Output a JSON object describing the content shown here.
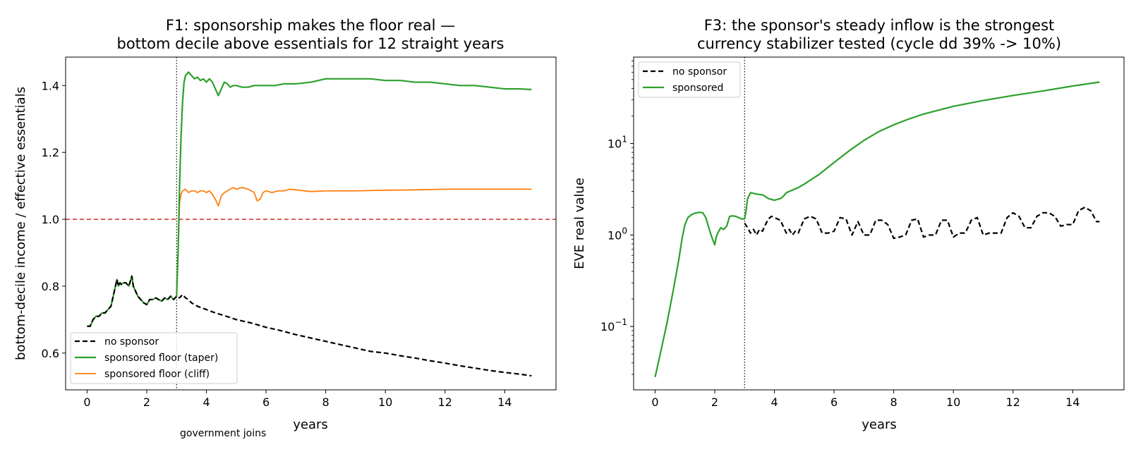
{
  "chart_data": [
    {
      "type": "line",
      "title_lines": [
        "F1: sponsorship makes the floor real —",
        "bottom decile above essentials for 12 straight years"
      ],
      "xlabel": "years",
      "ylabel": "bottom-decile income / effective essentials",
      "xlim": [
        -0.72,
        15.72
      ],
      "ylim": [
        0.49,
        1.485
      ],
      "xticks": [
        0,
        2,
        4,
        6,
        8,
        10,
        12,
        14
      ],
      "xtick_labels": [
        "0",
        "2",
        "4",
        "6",
        "8",
        "10",
        "12",
        "14"
      ],
      "yticks": [
        0.6,
        0.8,
        1.0,
        1.2,
        1.4
      ],
      "ytick_labels": [
        "0.6",
        "0.8",
        "1.0",
        "1.2",
        "1.4"
      ],
      "legend_position": "lower-left",
      "grid": false,
      "reference_lines": [
        {
          "orientation": "horizontal",
          "value": 1.0,
          "style": "dashed",
          "color": "#d62728"
        },
        {
          "orientation": "vertical",
          "value": 3.0,
          "style": "dotted",
          "color": "#000000"
        }
      ],
      "annotations": [
        {
          "text": "government joins",
          "x": 3.0
        }
      ],
      "series": [
        {
          "name": "no sponsor",
          "color": "#000000",
          "style": "dashed",
          "x": [
            0,
            0.1,
            0.2,
            0.3,
            0.4,
            0.5,
            0.6,
            0.7,
            0.8,
            0.9,
            1.0,
            1.05,
            1.1,
            1.15,
            1.2,
            1.3,
            1.4,
            1.5,
            1.55,
            1.6,
            1.7,
            1.8,
            1.9,
            2.0,
            2.1,
            2.2,
            2.3,
            2.4,
            2.5,
            2.6,
            2.7,
            2.8,
            2.9,
            3.0,
            3.1,
            3.2,
            3.3,
            3.4,
            3.5,
            3.7,
            4.0,
            4.3,
            4.6,
            5.0,
            5.5,
            6.0,
            6.5,
            7.0,
            7.5,
            8.0,
            8.5,
            9.0,
            9.5,
            10.0,
            10.5,
            11.0,
            11.5,
            12.0,
            12.5,
            13.0,
            13.5,
            14.0,
            14.5,
            14.9
          ],
          "y": [
            0.68,
            0.68,
            0.7,
            0.71,
            0.71,
            0.72,
            0.72,
            0.73,
            0.74,
            0.78,
            0.82,
            0.8,
            0.81,
            0.805,
            0.81,
            0.81,
            0.8,
            0.83,
            0.8,
            0.79,
            0.77,
            0.76,
            0.75,
            0.745,
            0.76,
            0.76,
            0.765,
            0.76,
            0.755,
            0.765,
            0.76,
            0.77,
            0.76,
            0.77,
            0.765,
            0.775,
            0.765,
            0.76,
            0.75,
            0.74,
            0.73,
            0.72,
            0.712,
            0.7,
            0.69,
            0.677,
            0.667,
            0.655,
            0.645,
            0.635,
            0.625,
            0.615,
            0.605,
            0.6,
            0.592,
            0.585,
            0.577,
            0.57,
            0.562,
            0.555,
            0.548,
            0.542,
            0.537,
            0.532
          ]
        },
        {
          "name": "sponsored floor (taper)",
          "color": "#2ca02c",
          "style": "solid",
          "x": [
            0,
            0.1,
            0.2,
            0.3,
            0.4,
            0.5,
            0.6,
            0.7,
            0.8,
            0.9,
            1.0,
            1.05,
            1.1,
            1.15,
            1.2,
            1.3,
            1.4,
            1.5,
            1.55,
            1.6,
            1.7,
            1.8,
            1.9,
            2.0,
            2.1,
            2.2,
            2.3,
            2.4,
            2.5,
            2.6,
            2.7,
            2.8,
            2.9,
            3.0,
            3.05,
            3.1,
            3.15,
            3.2,
            3.25,
            3.3,
            3.4,
            3.5,
            3.6,
            3.7,
            3.8,
            3.9,
            4.0,
            4.1,
            4.2,
            4.3,
            4.4,
            4.5,
            4.6,
            4.7,
            4.8,
            4.9,
            5.0,
            5.2,
            5.4,
            5.6,
            5.8,
            6.0,
            6.3,
            6.6,
            7.0,
            7.5,
            8.0,
            8.5,
            9.0,
            9.5,
            10.0,
            10.5,
            11.0,
            11.5,
            12.0,
            12.5,
            13.0,
            13.5,
            14.0,
            14.5,
            14.9
          ],
          "y": [
            0.68,
            0.68,
            0.7,
            0.71,
            0.71,
            0.72,
            0.72,
            0.73,
            0.74,
            0.78,
            0.82,
            0.8,
            0.81,
            0.805,
            0.81,
            0.81,
            0.8,
            0.83,
            0.8,
            0.79,
            0.77,
            0.76,
            0.75,
            0.745,
            0.76,
            0.76,
            0.765,
            0.76,
            0.755,
            0.765,
            0.76,
            0.77,
            0.76,
            0.77,
            0.9,
            1.1,
            1.25,
            1.35,
            1.41,
            1.43,
            1.44,
            1.43,
            1.42,
            1.425,
            1.415,
            1.42,
            1.41,
            1.42,
            1.41,
            1.39,
            1.37,
            1.39,
            1.41,
            1.405,
            1.395,
            1.4,
            1.4,
            1.395,
            1.395,
            1.4,
            1.4,
            1.4,
            1.4,
            1.405,
            1.405,
            1.41,
            1.42,
            1.42,
            1.42,
            1.42,
            1.415,
            1.415,
            1.41,
            1.41,
            1.405,
            1.4,
            1.4,
            1.395,
            1.39,
            1.39,
            1.388
          ]
        },
        {
          "name": "sponsored floor (cliff)",
          "color": "#ff7f0e",
          "style": "solid",
          "x": [
            0,
            0.1,
            0.2,
            0.3,
            0.4,
            0.5,
            0.6,
            0.7,
            0.8,
            0.9,
            1.0,
            1.05,
            1.1,
            1.15,
            1.2,
            1.3,
            1.4,
            1.5,
            1.55,
            1.6,
            1.7,
            1.8,
            1.9,
            2.0,
            2.1,
            2.2,
            2.3,
            2.4,
            2.5,
            2.6,
            2.7,
            2.8,
            2.9,
            3.0,
            3.05,
            3.1,
            3.15,
            3.2,
            3.3,
            3.4,
            3.5,
            3.6,
            3.7,
            3.8,
            3.9,
            4.0,
            4.1,
            4.2,
            4.3,
            4.4,
            4.5,
            4.6,
            4.7,
            4.8,
            4.9,
            5.0,
            5.2,
            5.4,
            5.6,
            5.7,
            5.8,
            5.9,
            6.0,
            6.2,
            6.4,
            6.6,
            6.8,
            7.0,
            7.5,
            8.0,
            9.0,
            10.0,
            11.0,
            12.0,
            13.0,
            14.0,
            14.9
          ],
          "y": [
            0.68,
            0.68,
            0.7,
            0.71,
            0.71,
            0.72,
            0.72,
            0.73,
            0.74,
            0.78,
            0.82,
            0.8,
            0.81,
            0.805,
            0.81,
            0.81,
            0.8,
            0.83,
            0.8,
            0.79,
            0.77,
            0.76,
            0.75,
            0.745,
            0.76,
            0.76,
            0.765,
            0.76,
            0.755,
            0.765,
            0.76,
            0.77,
            0.76,
            0.77,
            0.9,
            1.05,
            1.075,
            1.085,
            1.09,
            1.08,
            1.085,
            1.085,
            1.08,
            1.085,
            1.085,
            1.08,
            1.085,
            1.075,
            1.06,
            1.04,
            1.07,
            1.08,
            1.085,
            1.09,
            1.095,
            1.09,
            1.095,
            1.09,
            1.08,
            1.055,
            1.06,
            1.08,
            1.085,
            1.08,
            1.085,
            1.085,
            1.09,
            1.088,
            1.083,
            1.085,
            1.085,
            1.087,
            1.088,
            1.09,
            1.09,
            1.09,
            1.09
          ]
        }
      ]
    },
    {
      "type": "line",
      "title_lines": [
        "F3: the sponsor's steady inflow is the strongest",
        "currency stabilizer tested (cycle dd 39% -> 10%)"
      ],
      "xlabel": "years",
      "ylabel": "EVE real value",
      "yscale": "log",
      "xlim": [
        -0.72,
        15.72
      ],
      "ylim": [
        0.0203,
        88
      ],
      "xticks": [
        0,
        2,
        4,
        6,
        8,
        10,
        12,
        14
      ],
      "xtick_labels": [
        "0",
        "2",
        "4",
        "6",
        "8",
        "10",
        "12",
        "14"
      ],
      "yticks": [
        0.1,
        1,
        10
      ],
      "ytick_labels": [
        {
          "base": "10",
          "exp": "−1"
        },
        {
          "base": "10",
          "exp": "0"
        },
        {
          "base": "10",
          "exp": "1"
        }
      ],
      "legend_position": "upper-left",
      "grid": false,
      "reference_lines": [
        {
          "orientation": "vertical",
          "value": 3.0,
          "style": "dotted",
          "color": "#000000"
        }
      ],
      "series": [
        {
          "name": "no sponsor",
          "color": "#000000",
          "style": "dashed",
          "x": [
            3.0,
            3.1,
            3.2,
            3.3,
            3.4,
            3.5,
            3.6,
            3.7,
            3.8,
            3.9,
            4.0,
            4.2,
            4.4,
            4.5,
            4.6,
            4.7,
            4.8,
            5.0,
            5.2,
            5.4,
            5.6,
            5.8,
            6.0,
            6.2,
            6.4,
            6.6,
            6.8,
            7.0,
            7.2,
            7.4,
            7.6,
            7.8,
            8.0,
            8.2,
            8.4,
            8.6,
            8.8,
            9.0,
            9.2,
            9.4,
            9.6,
            9.8,
            10.0,
            10.2,
            10.4,
            10.6,
            10.8,
            11.0,
            11.2,
            11.4,
            11.6,
            11.8,
            12.0,
            12.2,
            12.4,
            12.6,
            12.8,
            13.0,
            13.2,
            13.4,
            13.6,
            13.8,
            14.0,
            14.2,
            14.4,
            14.6,
            14.8,
            14.9
          ],
          "y": [
            1.35,
            1.2,
            1.05,
            1.15,
            1.0,
            1.15,
            1.1,
            1.3,
            1.5,
            1.6,
            1.55,
            1.45,
            1.05,
            1.15,
            1.0,
            1.1,
            1.05,
            1.5,
            1.6,
            1.5,
            1.05,
            1.05,
            1.1,
            1.55,
            1.5,
            1.0,
            1.4,
            1.0,
            1.0,
            1.45,
            1.45,
            1.3,
            0.92,
            0.95,
            1.0,
            1.45,
            1.5,
            0.95,
            1.0,
            1.0,
            1.45,
            1.45,
            0.95,
            1.05,
            1.05,
            1.45,
            1.55,
            1.0,
            1.05,
            1.05,
            1.05,
            1.55,
            1.75,
            1.6,
            1.2,
            1.2,
            1.6,
            1.75,
            1.75,
            1.6,
            1.25,
            1.3,
            1.3,
            1.85,
            2.0,
            1.85,
            1.4,
            1.4
          ]
        },
        {
          "name": "sponsored",
          "color": "#2ca02c",
          "style": "solid",
          "x": [
            0,
            0.2,
            0.4,
            0.6,
            0.8,
            0.9,
            1.0,
            1.1,
            1.2,
            1.3,
            1.4,
            1.5,
            1.6,
            1.7,
            1.8,
            1.9,
            2.0,
            2.05,
            2.1,
            2.2,
            2.3,
            2.4,
            2.5,
            2.6,
            2.7,
            2.8,
            2.9,
            3.0,
            3.05,
            3.1,
            3.2,
            3.3,
            3.4,
            3.6,
            3.8,
            4.0,
            4.2,
            4.3,
            4.4,
            4.6,
            4.8,
            5.0,
            5.5,
            6.0,
            6.5,
            7.0,
            7.5,
            8.0,
            8.5,
            9.0,
            10.0,
            11.0,
            12.0,
            13.0,
            14.0,
            14.9
          ],
          "y": [
            0.028,
            0.055,
            0.11,
            0.24,
            0.55,
            0.9,
            1.3,
            1.55,
            1.65,
            1.72,
            1.75,
            1.77,
            1.75,
            1.55,
            1.2,
            0.95,
            0.78,
            0.95,
            1.05,
            1.2,
            1.15,
            1.25,
            1.6,
            1.62,
            1.6,
            1.55,
            1.5,
            1.5,
            1.85,
            2.5,
            2.9,
            2.85,
            2.8,
            2.75,
            2.5,
            2.4,
            2.5,
            2.65,
            2.9,
            3.1,
            3.3,
            3.6,
            4.6,
            6.2,
            8.3,
            10.8,
            13.5,
            16.0,
            18.5,
            21.0,
            25.5,
            29.5,
            33.5,
            37.5,
            42.5,
            47.0
          ]
        }
      ]
    }
  ]
}
